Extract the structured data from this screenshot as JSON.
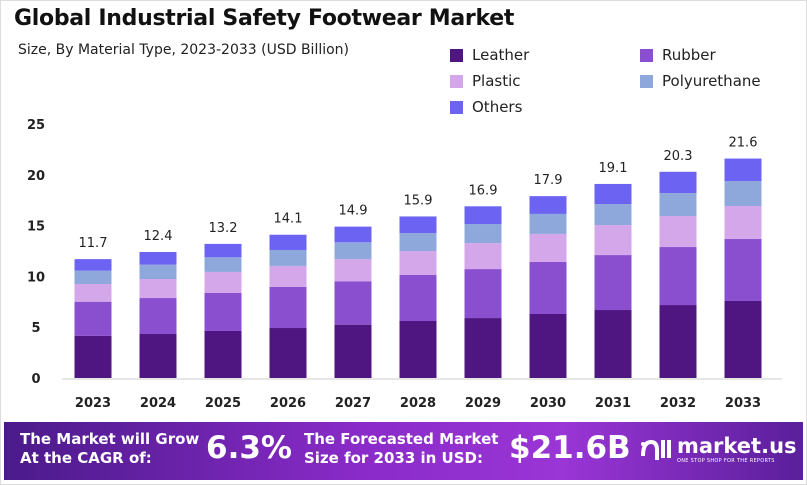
{
  "chart_data": {
    "type": "bar",
    "stacked": true,
    "title": "Global Industrial Safety Footwear Market",
    "subtitle": "Size, By Material Type, 2023-2033 (USD Billion)",
    "categories": [
      "2023",
      "2024",
      "2025",
      "2026",
      "2027",
      "2028",
      "2029",
      "2030",
      "2031",
      "2032",
      "2033"
    ],
    "series": [
      {
        "name": "Leather",
        "color": "#4f1682",
        "values": [
          4.16,
          4.33,
          4.63,
          4.92,
          5.25,
          5.61,
          5.9,
          6.3,
          6.69,
          7.18,
          7.58
        ]
      },
      {
        "name": "Rubber",
        "color": "#8a4fcf",
        "values": [
          3.35,
          3.54,
          3.74,
          4.04,
          4.25,
          4.53,
          4.82,
          5.12,
          5.41,
          5.71,
          6.1
        ]
      },
      {
        "name": "Plastic",
        "color": "#d4a6ea",
        "values": [
          1.74,
          1.87,
          2.07,
          2.07,
          2.2,
          2.36,
          2.56,
          2.76,
          2.95,
          3.05,
          3.25
        ]
      },
      {
        "name": "Polyurethane",
        "color": "#8fa8dc",
        "values": [
          1.31,
          1.41,
          1.44,
          1.57,
          1.66,
          1.77,
          1.87,
          1.97,
          2.07,
          2.26,
          2.46
        ]
      },
      {
        "name": "Others",
        "color": "#6c63f2",
        "values": [
          1.14,
          1.25,
          1.32,
          1.5,
          1.54,
          1.63,
          1.75,
          1.75,
          1.98,
          2.1,
          2.21
        ]
      }
    ],
    "totals": [
      "11.7",
      "12.4",
      "13.2",
      "14.1",
      "14.9",
      "15.9",
      "16.9",
      "17.9",
      "19.1",
      "20.3",
      "21.6"
    ],
    "ylim": [
      0,
      25
    ],
    "yticks": [
      "0",
      "5",
      "10",
      "15",
      "20",
      "25"
    ],
    "grid": false,
    "legend": "top-right"
  },
  "banner": {
    "cagr_label_1": "The Market will Grow",
    "cagr_label_2": "At the CAGR of:",
    "cagr_value": "6.3%",
    "forecast_label_1": "The Forecasted Market",
    "forecast_label_2": "Size for 2033 in USD:",
    "forecast_value": "$21.6B",
    "logo_name": "market.us",
    "logo_tagline": "ONE STOP SHOP FOR THE REPORTS"
  }
}
